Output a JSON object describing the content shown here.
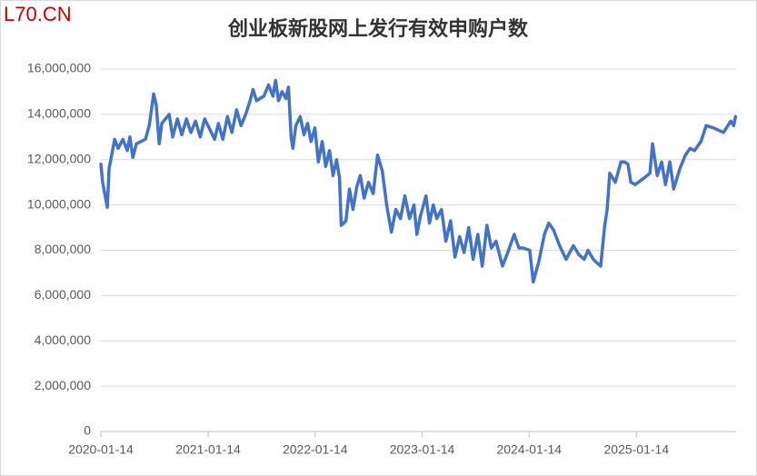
{
  "chart_data": {
    "type": "line",
    "watermark": "L70.CN",
    "title": "创业板新股网上发行有效申购户数",
    "color": "#4472c4",
    "grid": true,
    "x": [
      "2020-01-14",
      "2020-01-20",
      "2020-02-05",
      "2020-02-11",
      "2020-03-01",
      "2020-03-13",
      "2020-03-29",
      "2020-04-13",
      "2020-04-22",
      "2020-05-02",
      "2020-05-14",
      "2020-06-14",
      "2020-06-27",
      "2020-07-12",
      "2020-07-21",
      "2020-07-31",
      "2020-08-09",
      "2020-09-03",
      "2020-09-15",
      "2020-10-01",
      "2020-10-16",
      "2020-11-01",
      "2020-11-16",
      "2020-12-02",
      "2020-12-18",
      "2021-01-02",
      "2021-01-21",
      "2021-02-05",
      "2021-02-18",
      "2021-03-05",
      "2021-03-21",
      "2021-04-05",
      "2021-04-21",
      "2021-05-06",
      "2021-05-22",
      "2021-06-06",
      "2021-06-16",
      "2021-06-28",
      "2021-07-23",
      "2021-08-08",
      "2021-08-23",
      "2021-09-01",
      "2021-09-11",
      "2021-09-23",
      "2021-10-06",
      "2021-10-15",
      "2021-10-24",
      "2021-10-30",
      "2021-11-09",
      "2021-11-24",
      "2021-12-07",
      "2021-12-19",
      "2021-12-31",
      "2022-01-13",
      "2022-01-25",
      "2022-02-07",
      "2022-02-19",
      "2022-03-04",
      "2022-03-16",
      "2022-03-28",
      "2022-04-07",
      "2022-04-13",
      "2022-04-29",
      "2022-05-11",
      "2022-05-23",
      "2022-06-05",
      "2022-06-17",
      "2022-06-30",
      "2022-07-15",
      "2022-07-31",
      "2022-08-15",
      "2022-08-31",
      "2022-09-15",
      "2022-10-01",
      "2022-10-16",
      "2022-11-01",
      "2022-11-16",
      "2022-12-02",
      "2022-12-17",
      "2022-12-27",
      "2023-01-08",
      "2023-01-27",
      "2023-02-08",
      "2023-02-21",
      "2023-03-05",
      "2023-03-21",
      "2023-04-05",
      "2023-04-21",
      "2023-05-06",
      "2023-05-22",
      "2023-06-06",
      "2023-06-22",
      "2023-07-07",
      "2023-07-23",
      "2023-08-07",
      "2023-08-23",
      "2023-09-07",
      "2023-09-23",
      "2023-10-15",
      "2023-11-02",
      "2023-11-24",
      "2023-12-10",
      "2023-12-25",
      "2024-01-16",
      "2024-01-28",
      "2024-02-16",
      "2024-03-06",
      "2024-03-21",
      "2024-04-06",
      "2024-04-27",
      "2024-05-19",
      "2024-06-13",
      "2024-07-02",
      "2024-07-20",
      "2024-08-02",
      "2024-08-20",
      "2024-09-05",
      "2024-09-14",
      "2024-09-27",
      "2024-10-06",
      "2024-10-15",
      "2024-11-03",
      "2024-11-22",
      "2024-12-04",
      "2024-12-16",
      "2024-12-26",
      "2025-01-10",
      "2025-02-10",
      "2025-03-01",
      "2025-03-10",
      "2025-03-26",
      "2025-04-10",
      "2025-04-23",
      "2025-05-08",
      "2025-05-21",
      "2025-06-11",
      "2025-06-30",
      "2025-07-16",
      "2025-07-31",
      "2025-08-22",
      "2025-09-09",
      "2025-10-04",
      "2025-11-07",
      "2025-12-02",
      "2025-12-12",
      "2025-12-18"
    ],
    "values": [
      11800000,
      11000000,
      9900000,
      11600000,
      12900000,
      12500000,
      12900000,
      12400000,
      13000000,
      12100000,
      12700000,
      12900000,
      13500000,
      14900000,
      14400000,
      12700000,
      13600000,
      14000000,
      13000000,
      13800000,
      13100000,
      13800000,
      13200000,
      13700000,
      13000000,
      13800000,
      13300000,
      12900000,
      13600000,
      12900000,
      13900000,
      13200000,
      14200000,
      13500000,
      14000000,
      14600000,
      15100000,
      14600000,
      14800000,
      15300000,
      14800000,
      15500000,
      14600000,
      15000000,
      14700000,
      15200000,
      13000000,
      12500000,
      13500000,
      13900000,
      13100000,
      13600000,
      12800000,
      13400000,
      11900000,
      12800000,
      11700000,
      12400000,
      11300000,
      12000000,
      11200000,
      9100000,
      9300000,
      10700000,
      9800000,
      10800000,
      11300000,
      10300000,
      11000000,
      10500000,
      12200000,
      11500000,
      10000000,
      8800000,
      9800000,
      9400000,
      10400000,
      9400000,
      10000000,
      8700000,
      9500000,
      10400000,
      9200000,
      10000000,
      9400000,
      9800000,
      8400000,
      9300000,
      7700000,
      8600000,
      7900000,
      9000000,
      7600000,
      8700000,
      7300000,
      9100000,
      8100000,
      8400000,
      7300000,
      7900000,
      8700000,
      8100000,
      8100000,
      8000000,
      6600000,
      7500000,
      8700000,
      9200000,
      8900000,
      8200000,
      7600000,
      8200000,
      7800000,
      7600000,
      8000000,
      7600000,
      7400000,
      7300000,
      9000000,
      9800000,
      11400000,
      11000000,
      11900000,
      11900000,
      11800000,
      11000000,
      10900000,
      11200000,
      11400000,
      12700000,
      11300000,
      11900000,
      10900000,
      11900000,
      10700000,
      11600000,
      12200000,
      12500000,
      12400000,
      12800000,
      13500000,
      13400000,
      13200000,
      13700000,
      13500000,
      13900000
    ],
    "xlim": [
      "2020-01-14",
      "2025-12-20"
    ],
    "xticks": [
      "2020-01-14",
      "2021-01-14",
      "2022-01-14",
      "2023-01-14",
      "2024-01-14",
      "2025-01-14"
    ],
    "ylim": [
      0,
      16000000
    ],
    "yticks": [
      0,
      {
        "value": 2000000,
        "label": "2,000,000"
      },
      {
        "value": 4000000,
        "label": "4,000,000"
      },
      {
        "value": 6000000,
        "label": "6,000,000"
      },
      {
        "value": 8000000,
        "label": "8,000,000"
      },
      {
        "value": 10000000,
        "label": "10,000,000"
      },
      {
        "value": 12000000,
        "label": "12,000,000"
      },
      {
        "value": 14000000,
        "label": "14,000,000"
      },
      {
        "value": 16000000,
        "label": "16,000,000"
      }
    ]
  }
}
